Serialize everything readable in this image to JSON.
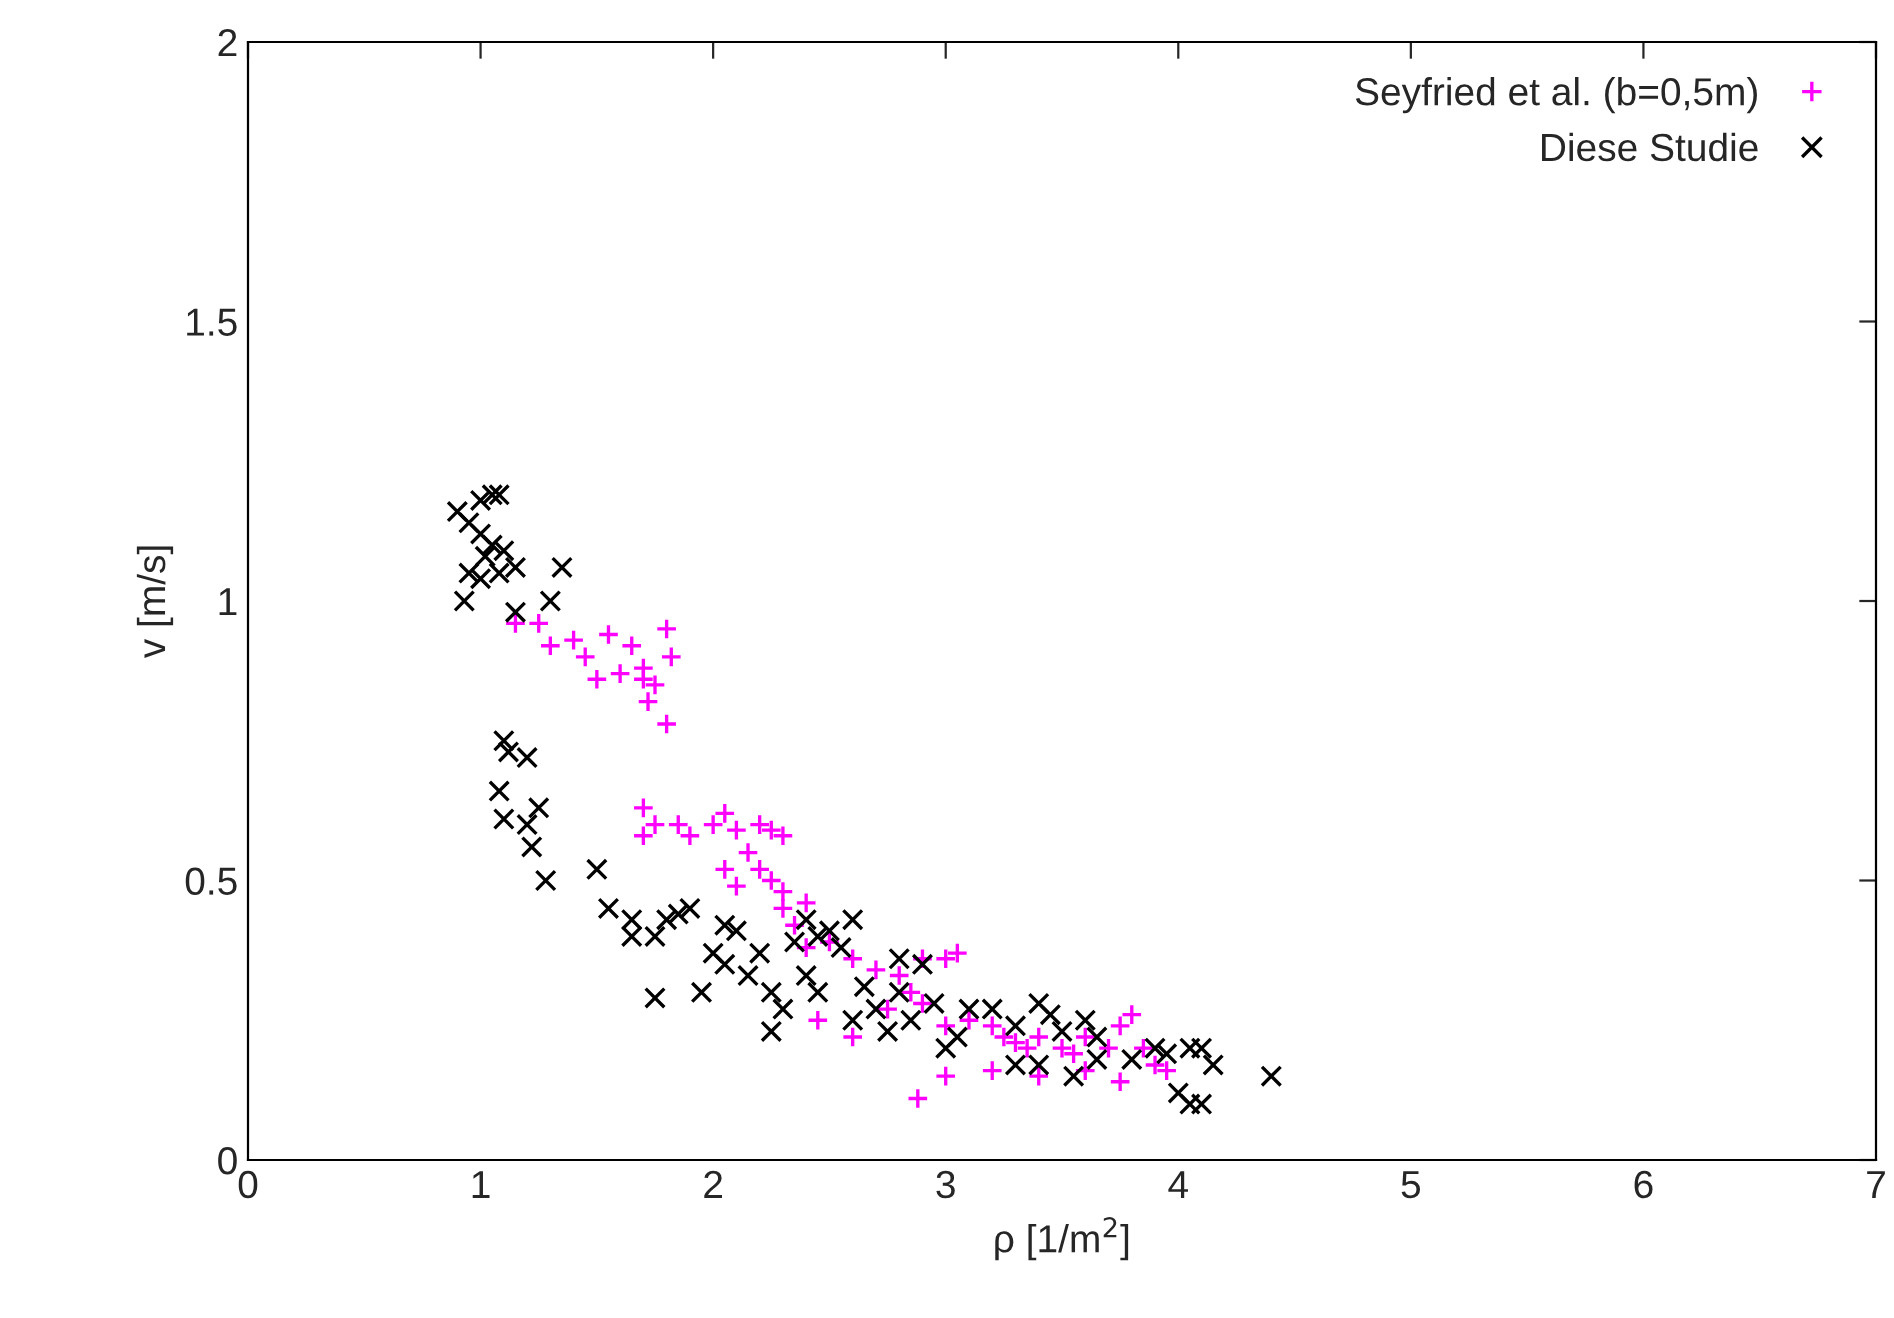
{
  "chart_data": {
    "type": "scatter",
    "xlabel": "ρ [1/m$^{2}$]",
    "ylabel": "v [m/s]",
    "xlim": [
      0,
      7
    ],
    "ylim": [
      0,
      2
    ],
    "xticks": [
      0,
      1,
      2,
      3,
      4,
      5,
      6,
      7
    ],
    "yticks": [
      0,
      {
        "value": 0.5,
        "label": "0.5"
      },
      1,
      {
        "value": 1.5,
        "label": "1.5"
      },
      2
    ],
    "grid": false,
    "legend": "top right",
    "series": [
      {
        "name": "Seyfried et al. (b=0,5m)",
        "color": "#ff00ff",
        "marker": "plus",
        "x": [
          1.15,
          1.25,
          1.3,
          1.4,
          1.45,
          1.5,
          1.55,
          1.6,
          1.65,
          1.7,
          1.72,
          1.75,
          1.8,
          1.82,
          1.8,
          1.7,
          1.7,
          1.75,
          1.7,
          1.85,
          1.9,
          2.0,
          2.05,
          2.1,
          2.2,
          2.25,
          2.3,
          2.15,
          2.2,
          2.25,
          2.3,
          2.1,
          2.05,
          2.3,
          2.35,
          2.4,
          2.4,
          2.5,
          2.6,
          2.7,
          2.8,
          2.85,
          2.9,
          3.0,
          3.05,
          2.75,
          2.9,
          3.0,
          3.1,
          3.2,
          3.3,
          3.35,
          3.4,
          3.5,
          3.55,
          3.6,
          3.7,
          3.75,
          3.8,
          3.85,
          3.9,
          3.95,
          3.0,
          3.2,
          3.4,
          3.6,
          3.75,
          2.88,
          2.6,
          2.45,
          3.25
        ],
        "values": [
          0.96,
          0.96,
          0.92,
          0.93,
          0.9,
          0.86,
          0.94,
          0.87,
          0.92,
          0.88,
          0.82,
          0.85,
          0.95,
          0.9,
          0.78,
          0.86,
          0.63,
          0.6,
          0.58,
          0.6,
          0.58,
          0.6,
          0.62,
          0.59,
          0.6,
          0.59,
          0.58,
          0.55,
          0.52,
          0.5,
          0.48,
          0.49,
          0.52,
          0.45,
          0.42,
          0.46,
          0.38,
          0.39,
          0.36,
          0.34,
          0.33,
          0.3,
          0.36,
          0.36,
          0.37,
          0.27,
          0.28,
          0.24,
          0.25,
          0.24,
          0.21,
          0.2,
          0.22,
          0.2,
          0.19,
          0.22,
          0.2,
          0.24,
          0.26,
          0.2,
          0.17,
          0.16,
          0.15,
          0.16,
          0.15,
          0.16,
          0.14,
          0.11,
          0.22,
          0.25,
          0.22
        ]
      },
      {
        "name": "Diese Studie",
        "color": "#000000",
        "marker": "cross",
        "x": [
          0.9,
          0.95,
          1.0,
          1.05,
          1.08,
          1.0,
          1.02,
          1.05,
          1.1,
          1.08,
          0.95,
          1.0,
          0.93,
          1.15,
          1.35,
          1.15,
          1.3,
          1.1,
          1.12,
          1.2,
          1.08,
          1.1,
          1.2,
          1.22,
          1.25,
          1.28,
          1.5,
          1.55,
          1.65,
          1.65,
          1.75,
          1.75,
          1.8,
          1.85,
          1.9,
          1.95,
          2.0,
          2.05,
          2.05,
          2.1,
          2.15,
          2.2,
          2.25,
          2.25,
          2.3,
          2.35,
          2.4,
          2.45,
          2.5,
          2.55,
          2.6,
          2.65,
          2.7,
          2.75,
          2.8,
          2.85,
          2.9,
          2.95,
          3.0,
          3.05,
          3.1,
          3.2,
          3.3,
          3.4,
          3.45,
          3.5,
          3.6,
          3.65,
          3.3,
          3.4,
          3.55,
          3.65,
          3.8,
          3.9,
          3.95,
          4.05,
          4.1,
          4.15,
          4.0,
          4.05,
          4.1,
          4.4,
          2.4,
          2.45,
          2.8,
          2.6
        ],
        "values": [
          1.16,
          1.14,
          1.18,
          1.19,
          1.19,
          1.12,
          1.08,
          1.1,
          1.09,
          1.05,
          1.05,
          1.04,
          1.0,
          1.06,
          1.06,
          0.98,
          1.0,
          0.75,
          0.73,
          0.72,
          0.66,
          0.61,
          0.6,
          0.56,
          0.63,
          0.5,
          0.52,
          0.45,
          0.43,
          0.4,
          0.29,
          0.4,
          0.43,
          0.44,
          0.45,
          0.3,
          0.37,
          0.42,
          0.35,
          0.41,
          0.33,
          0.37,
          0.3,
          0.23,
          0.27,
          0.39,
          0.43,
          0.4,
          0.41,
          0.38,
          0.43,
          0.31,
          0.27,
          0.23,
          0.3,
          0.25,
          0.35,
          0.28,
          0.2,
          0.22,
          0.27,
          0.27,
          0.24,
          0.28,
          0.26,
          0.23,
          0.25,
          0.22,
          0.17,
          0.17,
          0.15,
          0.18,
          0.18,
          0.2,
          0.19,
          0.2,
          0.2,
          0.17,
          0.12,
          0.1,
          0.1,
          0.15,
          0.33,
          0.3,
          0.36,
          0.25
        ]
      }
    ]
  }
}
